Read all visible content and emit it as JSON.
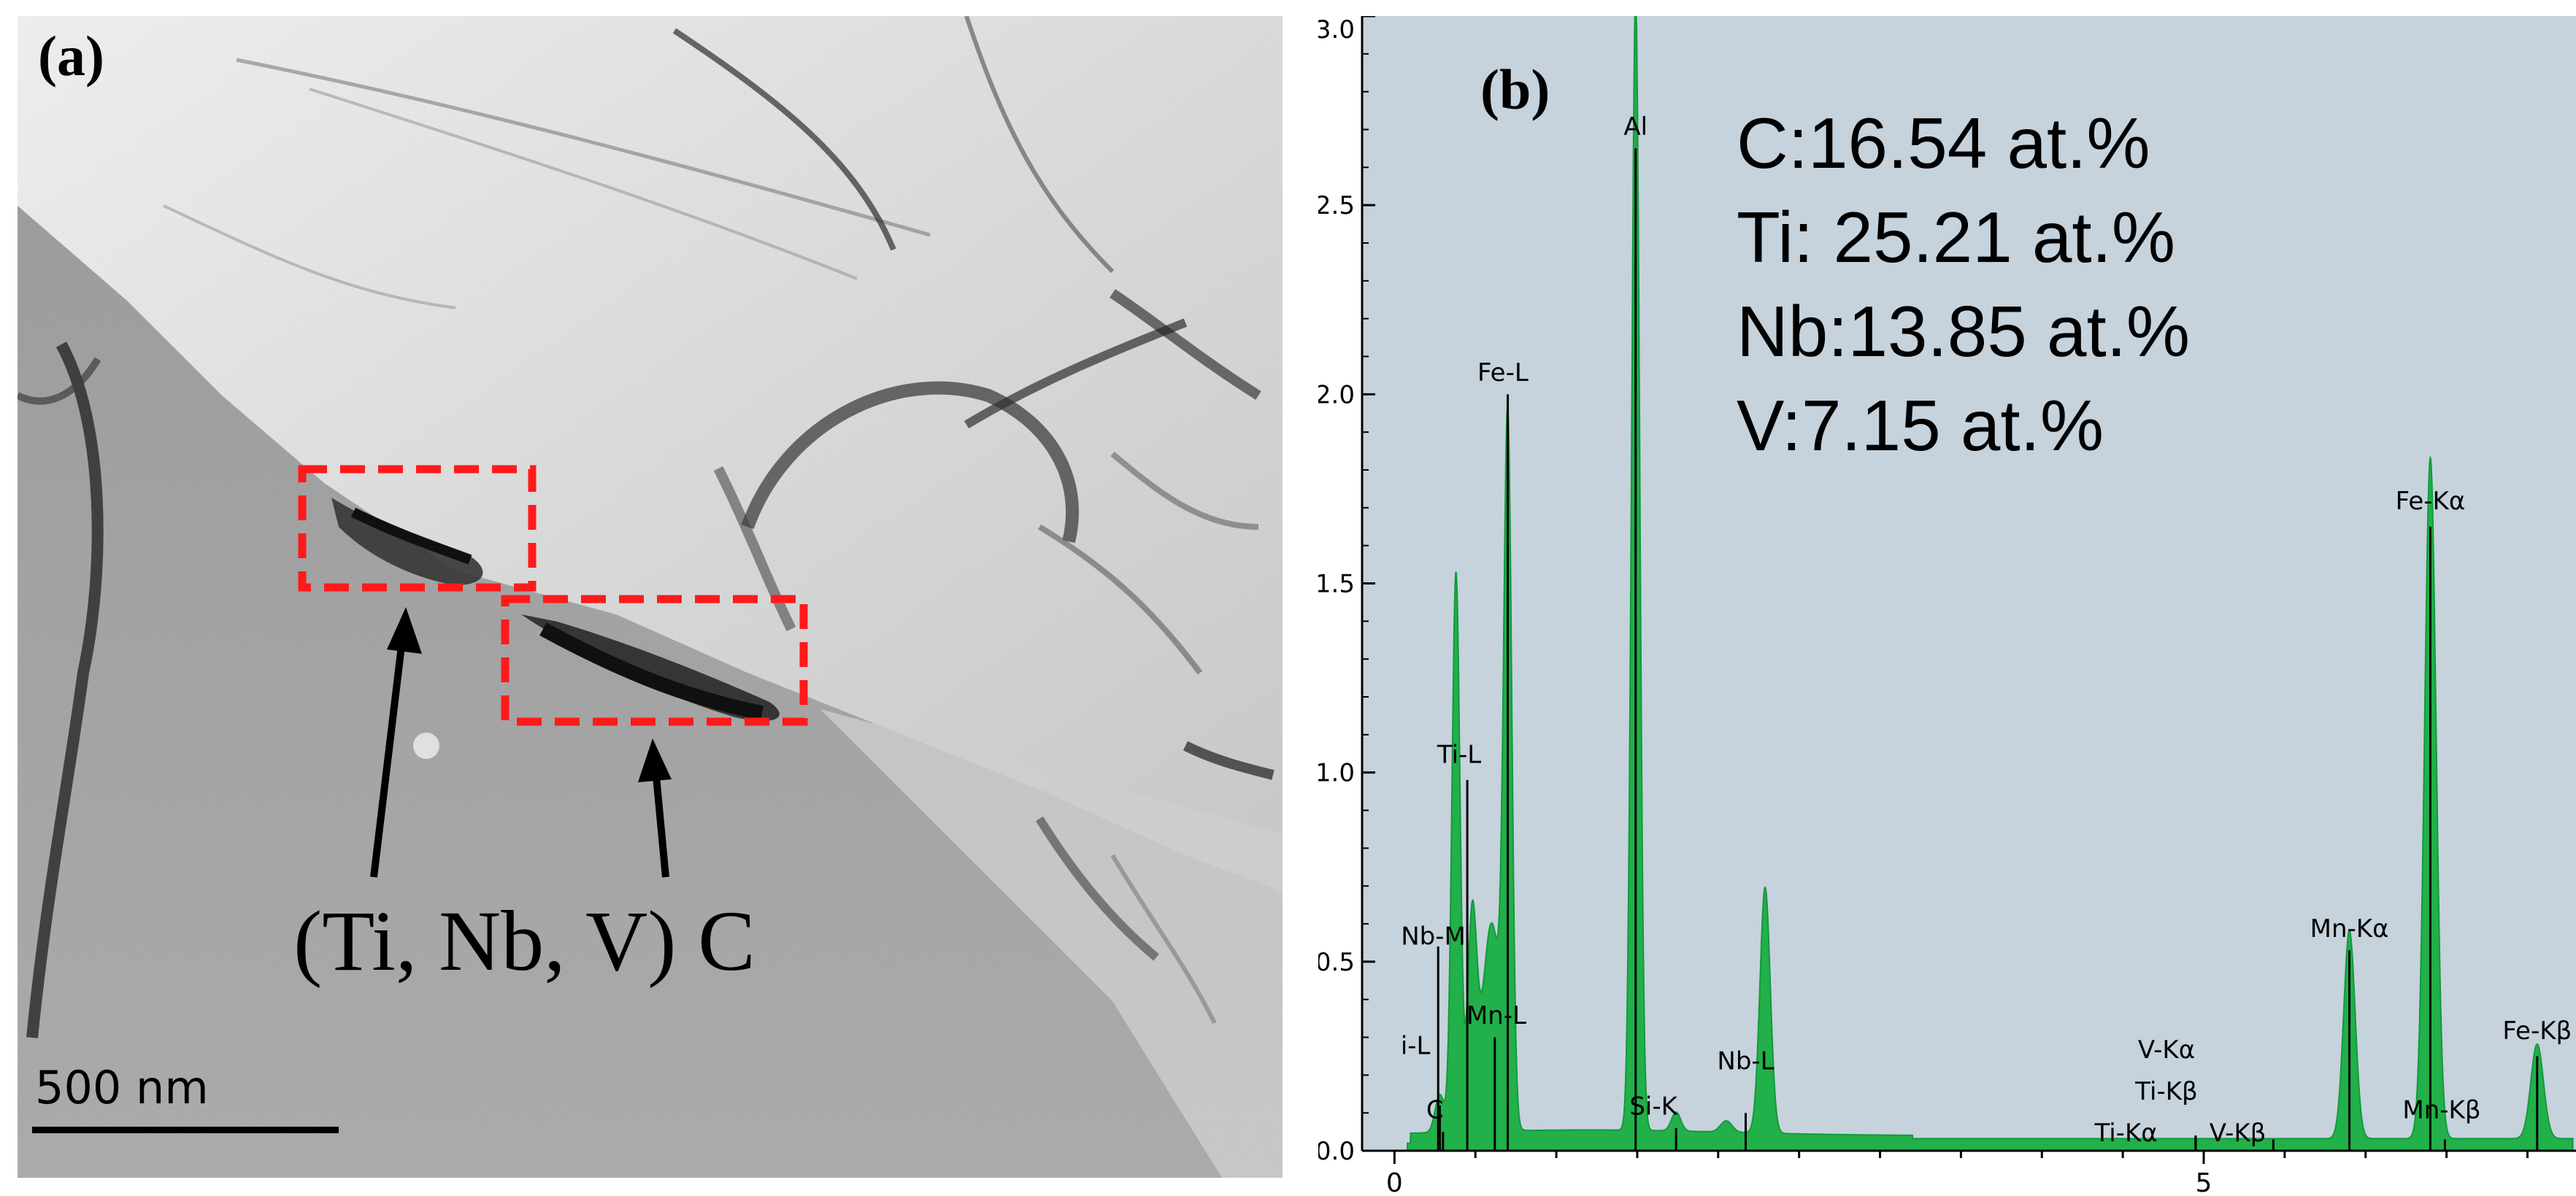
{
  "panel_a": {
    "label": "(a)",
    "caption": "(Ti, Nb, V) C",
    "scale_bar": "500 nm",
    "colors": {
      "box": "#ff1a1a",
      "arrow": "#000000"
    }
  },
  "panel_b": {
    "label": "(b)",
    "composition": [
      "C:16.54 at.%",
      "Ti: 25.21 at.%",
      "Nb:13.85 at.%",
      "V:7.15 at.%"
    ]
  },
  "chart_data": {
    "type": "area",
    "xlim": [
      -0.2,
      7.3
    ],
    "ylim": [
      0,
      3.0
    ],
    "x_ticks": [
      0,
      5
    ],
    "x_tick_labels": [
      "0",
      "5"
    ],
    "y_ticks": [
      0.0,
      0.5,
      1.0,
      1.5,
      2.0,
      2.5,
      3.0
    ],
    "y_tick_labels": [
      "0.0",
      "0.5",
      "1.0",
      "1.5",
      "2.0",
      "2.5",
      "3.0"
    ],
    "background": "#c6d2dc",
    "fill_color": "#22b04a",
    "peaks": [
      {
        "x": 0.28,
        "height": 0.1,
        "width": 0.04
      },
      {
        "x": 0.38,
        "height": 1.48,
        "width": 0.035
      },
      {
        "x": 0.48,
        "height": 0.55,
        "width": 0.04
      },
      {
        "x": 0.6,
        "height": 0.55,
        "width": 0.08
      },
      {
        "x": 0.7,
        "height": 1.8,
        "width": 0.035
      },
      {
        "x": 1.49,
        "height": 3.0,
        "width": 0.035
      },
      {
        "x": 1.74,
        "height": 0.05,
        "width": 0.04
      },
      {
        "x": 2.05,
        "height": 0.03,
        "width": 0.05
      },
      {
        "x": 2.29,
        "height": 0.65,
        "width": 0.045
      },
      {
        "x": 5.9,
        "height": 0.55,
        "width": 0.05
      },
      {
        "x": 6.4,
        "height": 1.8,
        "width": 0.05
      },
      {
        "x": 7.06,
        "height": 0.25,
        "width": 0.055
      }
    ],
    "markers": [
      {
        "x": 0.27,
        "h": 0.54,
        "label": "Nb-M",
        "lx": 0.24,
        "ly": 0.53
      },
      {
        "x": 0.28,
        "h": 0.12,
        "label": "i-L",
        "lx": 0.13,
        "ly": 0.24
      },
      {
        "x": 0.3,
        "h": 0.05,
        "label": "C",
        "lx": 0.25,
        "ly": 0.07
      },
      {
        "x": 0.45,
        "h": 0.98,
        "label": "Ti-L",
        "lx": 0.4,
        "ly": 1.01
      },
      {
        "x": 0.62,
        "h": 0.3,
        "label": "Mn-L",
        "lx": 0.63,
        "ly": 0.32
      },
      {
        "x": 0.7,
        "h": 2.0,
        "label": "Fe-L",
        "lx": 0.67,
        "ly": 2.02
      },
      {
        "x": 1.49,
        "h": 2.65,
        "label": "Al",
        "lx": 1.49,
        "ly": 2.67
      },
      {
        "x": 1.74,
        "h": 0.06,
        "label": "Si-K",
        "lx": 1.6,
        "ly": 0.08
      },
      {
        "x": 2.17,
        "h": 0.1,
        "label": "Nb-L",
        "lx": 2.17,
        "ly": 0.2
      },
      {
        "x": 4.95,
        "h": 0.04,
        "label": "Ti-Kα",
        "lx": 4.52,
        "ly": 0.01
      },
      {
        "x": 4.95,
        "h": 0.04,
        "label": "Ti-Kβ",
        "lx": 4.77,
        "ly": 0.12
      },
      {
        "x": 4.95,
        "h": 0.04,
        "label": "V-Kα",
        "lx": 4.77,
        "ly": 0.23
      },
      {
        "x": 5.43,
        "h": 0.03,
        "label": "V-Kβ",
        "lx": 5.21,
        "ly": 0.01
      },
      {
        "x": 5.9,
        "h": 0.53,
        "label": "Mn-Kα",
        "lx": 5.9,
        "ly": 0.55
      },
      {
        "x": 6.49,
        "h": 0.03,
        "label": "Mn-Kβ",
        "lx": 6.47,
        "ly": 0.07
      },
      {
        "x": 6.4,
        "h": 1.65,
        "label": "Fe-Kα",
        "lx": 6.4,
        "ly": 1.68
      },
      {
        "x": 7.06,
        "h": 0.25,
        "label": "Fe-Kβ",
        "lx": 7.06,
        "ly": 0.28
      }
    ]
  }
}
